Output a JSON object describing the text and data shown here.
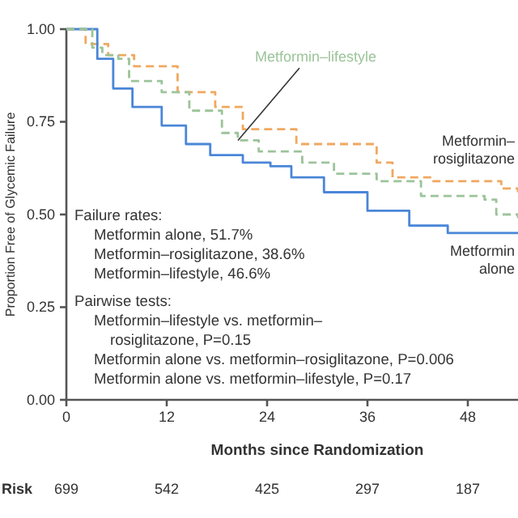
{
  "chart_data": {
    "type": "step",
    "xlabel": "Months since Randomization",
    "ylabel": "Proportion Free of Glycemic Failure",
    "xlim": [
      0,
      54
    ],
    "ylim": [
      0,
      1
    ],
    "xticks": [
      0,
      12,
      24,
      36,
      48
    ],
    "yticks": [
      {
        "value": 0,
        "label": "0.00"
      },
      {
        "value": 0.25,
        "label": "0.25"
      },
      {
        "value": 0.5,
        "label": "0.50"
      },
      {
        "value": 0.75,
        "label": "0.75"
      },
      {
        "value": 1,
        "label": "1.00"
      }
    ],
    "series": [
      {
        "name": "Metformin–rosiglitazone",
        "color": "#f0a860",
        "line_style": "dashed",
        "x": [
          0,
          1.7,
          2.3,
          5,
          8.1,
          13.3,
          17.8,
          21.1,
          27.5,
          37.1,
          39,
          42.4,
          43.7,
          52,
          54
        ],
        "values": [
          1,
          1,
          0.96,
          0.93,
          0.9,
          0.83,
          0.79,
          0.73,
          0.69,
          0.64,
          0.6,
          0.6,
          0.59,
          0.57,
          0.56
        ]
      },
      {
        "name": "Metformin alone",
        "color": "#4a86d8",
        "line_style": "solid",
        "x": [
          0,
          1.7,
          3.7,
          5.6,
          7.9,
          11.4,
          14.3,
          17.2,
          21.1,
          24.4,
          26.9,
          30.8,
          36,
          41,
          45.6,
          54
        ],
        "values": [
          1,
          1,
          0.92,
          0.84,
          0.79,
          0.74,
          0.69,
          0.66,
          0.64,
          0.63,
          0.6,
          0.56,
          0.51,
          0.47,
          0.45,
          0.45
        ]
      },
      {
        "name": "Metformin–lifestyle",
        "color": "#9cc49a",
        "line_style": "dashed",
        "x": [
          0,
          1.7,
          3.1,
          4.3,
          6.2,
          7.5,
          11.4,
          14.7,
          18.6,
          20.5,
          23,
          28.2,
          32,
          37.1,
          39.8,
          42.4,
          50,
          51.4,
          54
        ],
        "values": [
          1,
          1,
          0.95,
          0.93,
          0.92,
          0.86,
          0.83,
          0.78,
          0.72,
          0.7,
          0.67,
          0.64,
          0.61,
          0.59,
          0.59,
          0.55,
          0.54,
          0.5,
          0.49
        ]
      }
    ],
    "annotations": [
      "Failure rates:",
      "Metformin alone, 51.7%",
      "Metformin–rosiglitazone, 38.6%",
      "Metformin–lifestyle, 46.6%",
      "Pairwise tests:",
      "Metformin–lifestyle vs. metformin–",
      "rosiglitazone, P=0.15",
      "Metformin alone vs. metformin–rosiglitazone, P=0.006",
      "Metformin alone vs. metformin–lifestyle, P=0.17",
      "Risk",
      "699",
      "542",
      "425",
      "297",
      "187"
    ],
    "grid": false
  }
}
